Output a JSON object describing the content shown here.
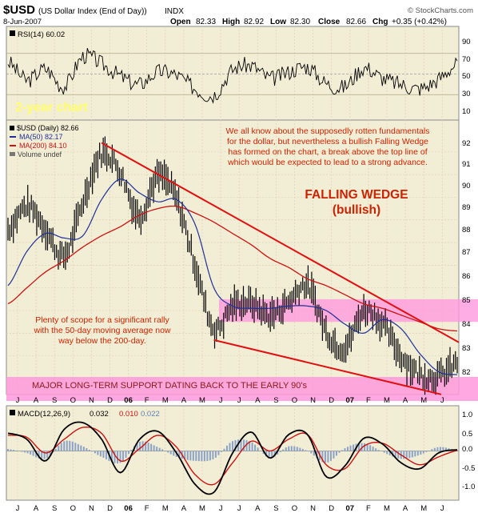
{
  "header": {
    "symbol": "$USD",
    "description": "(US Dollar Index (End of Day))",
    "exchange": "INDX",
    "date": "8-Jun-2007",
    "open_label": "Open",
    "open": "82.33",
    "high_label": "High",
    "high": "82.92",
    "low_label": "Low",
    "low": "82.30",
    "close_label": "Close",
    "close": "82.66",
    "chg_label": "Chg",
    "chg": "+0.35 (+0.42%)",
    "logo": "© StockCharts.com"
  },
  "colors": {
    "panel_bg": "#f2edd5",
    "grid": "#d9d2b4",
    "price": "#000000",
    "ma50": "#1f2f9a",
    "ma200": "#cc1111",
    "wedge": "#e01010",
    "band": "#ff99dd",
    "annot_red": "#cc2200",
    "annot_yellow": "#ffff66",
    "macd": "#000000",
    "signal": "#cc1111",
    "hist": "#8aa2c8"
  },
  "rsi_panel": {
    "label": "RSI(14) 60.02",
    "ticks": [
      "90",
      "70",
      "50",
      "30",
      "10"
    ]
  },
  "price_panel": {
    "chart_title_note": "2-year chart",
    "legend": {
      "price": "$USD (Daily) 82.66",
      "ma50": "MA(50) 82.17",
      "ma200": "MA(200) 84.10",
      "volume": "Volume undef"
    },
    "ticks": [
      "92",
      "91",
      "90",
      "89",
      "88",
      "87",
      "86",
      "85",
      "84",
      "83",
      "82"
    ],
    "note_fundamentals": [
      "We all know about the supposedly rotten fundamentals",
      "for the dollar, but nevertheless a bullish Falling Wedge",
      "has formed on the chart, a break above the top line of",
      "which would be expected to lead to a strong advance."
    ],
    "wedge_title": "FALLING WEDGE",
    "wedge_subtitle": "(bullish)",
    "note_scope": [
      "Plenty of scope for a significant rally",
      "with the 50-day moving average now",
      "way below the 200-day."
    ],
    "support_label": "MAJOR LONG-TERM SUPPORT DATING BACK TO THE EARLY 90's"
  },
  "macd_panel": {
    "label_prefix": "MACD(12,26,9)",
    "macd": "0.032",
    "signal": "0.010",
    "hist": "0.022",
    "ticks": [
      "1.0",
      "0.5",
      "0.0",
      "-0.5",
      "-1.0"
    ]
  },
  "x_axis": {
    "months": [
      "J",
      "A",
      "S",
      "O",
      "N",
      "D",
      "06",
      "F",
      "M",
      "A",
      "M",
      "J",
      "J",
      "A",
      "S",
      "O",
      "N",
      "D",
      "07",
      "F",
      "M",
      "A",
      "M",
      "J"
    ]
  },
  "chart_data": {
    "type": "line",
    "title": "$USD (US Dollar Index (End of Day))",
    "period": "Jun 2005 - 8-Jun-2007, daily",
    "x": [
      "Jun-05",
      "Jul-05",
      "Aug-05",
      "Sep-05",
      "Oct-05",
      "Nov-05",
      "Dec-05",
      "Jan-06",
      "Feb-06",
      "Mar-06",
      "Apr-06",
      "May-06",
      "Jun-06",
      "Jul-06",
      "Aug-06",
      "Sep-06",
      "Oct-06",
      "Nov-06",
      "Dec-06",
      "Jan-07",
      "Feb-07",
      "Mar-07",
      "Apr-07",
      "May-07",
      "Jun-07"
    ],
    "ylim": [
      81.4,
      93.3
    ],
    "series": [
      {
        "name": "$USD (Daily)",
        "values": [
          88.6,
          89.6,
          88.6,
          87.4,
          89.8,
          91.9,
          91.1,
          89.2,
          90.9,
          89.9,
          87.0,
          84.2,
          85.2,
          85.3,
          84.8,
          85.4,
          86.1,
          84.1,
          83.4,
          85.0,
          84.4,
          83.0,
          82.2,
          82.1,
          82.66
        ]
      },
      {
        "name": "MA(50)",
        "values": [
          86.1,
          87.6,
          88.4,
          88.2,
          88.3,
          89.9,
          90.8,
          90.2,
          89.8,
          89.9,
          88.8,
          86.0,
          85.2,
          85.1,
          85.1,
          85.2,
          85.2,
          85.0,
          84.4,
          84.0,
          84.6,
          84.2,
          83.1,
          82.3,
          82.17
        ]
      },
      {
        "name": "MA(200)",
        "values": [
          85.3,
          86.0,
          86.7,
          87.2,
          87.8,
          88.3,
          88.7,
          89.2,
          89.5,
          89.6,
          89.3,
          88.9,
          88.4,
          87.9,
          87.3,
          86.9,
          86.4,
          86.1,
          85.7,
          85.3,
          85.1,
          84.8,
          84.5,
          84.2,
          84.1
        ]
      }
    ],
    "wedge_upper": [
      {
        "x": "Nov-05",
        "y": 92.4
      },
      {
        "x": "Jun-07",
        "y": 83.6
      }
    ],
    "wedge_lower": [
      {
        "x": "May-06",
        "y": 83.7
      },
      {
        "x": "Jun-07",
        "y": 81.3
      }
    ],
    "pink_band_upper": [
      84.5,
      85.5
    ],
    "pink_band_lower": [
      81.4,
      82.0
    ],
    "rsi": {
      "name": "RSI(14)",
      "last": 60.02,
      "ylim": [
        10,
        90
      ],
      "values": [
        62,
        44,
        55,
        38,
        67,
        60,
        48,
        40,
        52,
        49,
        36,
        30,
        54,
        58,
        46,
        52,
        57,
        41,
        38,
        56,
        46,
        40,
        36,
        45,
        60
      ]
    },
    "macd": {
      "name": "MACD(12,26,9)",
      "ylim": [
        -1.25,
        1.15
      ],
      "macd": [
        0.45,
        0.3,
        -0.25,
        0.55,
        0.72,
        0.3,
        -0.55,
        0.28,
        0.5,
        -0.05,
        -0.85,
        -1.05,
        -0.05,
        0.48,
        -0.18,
        0.42,
        0.42,
        -0.65,
        -0.38,
        0.32,
        0.18,
        -0.3,
        -0.45,
        -0.05,
        0.032
      ],
      "signal": [
        0.4,
        0.35,
        -0.05,
        0.3,
        0.6,
        0.45,
        -0.25,
        0.05,
        0.4,
        0.1,
        -0.6,
        -0.85,
        -0.3,
        0.25,
        0.0,
        0.3,
        0.42,
        -0.35,
        -0.45,
        0.12,
        0.2,
        -0.1,
        -0.35,
        -0.15,
        0.01
      ]
    }
  }
}
